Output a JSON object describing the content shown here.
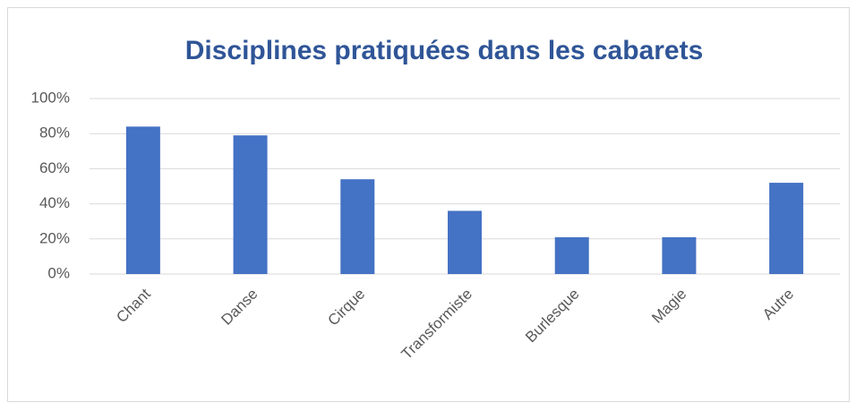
{
  "chart_data": {
    "type": "bar",
    "title": "Disciplines pratiquées dans les cabarets",
    "categories": [
      "Chant",
      "Danse",
      "Cirque",
      "Transformiste",
      "Burlesque",
      "Magie",
      "Autre"
    ],
    "values": [
      84,
      79,
      54,
      36,
      21,
      21,
      52
    ],
    "color": "#4472c4",
    "ylim": [
      0,
      100
    ],
    "yticks": [
      {
        "value": 0,
        "label": "0%"
      },
      {
        "value": 20,
        "label": "20%"
      },
      {
        "value": 40,
        "label": "40%"
      },
      {
        "value": 60,
        "label": "60%"
      },
      {
        "value": 80,
        "label": "80%"
      },
      {
        "value": 100,
        "label": "100%"
      }
    ],
    "grid": true
  }
}
